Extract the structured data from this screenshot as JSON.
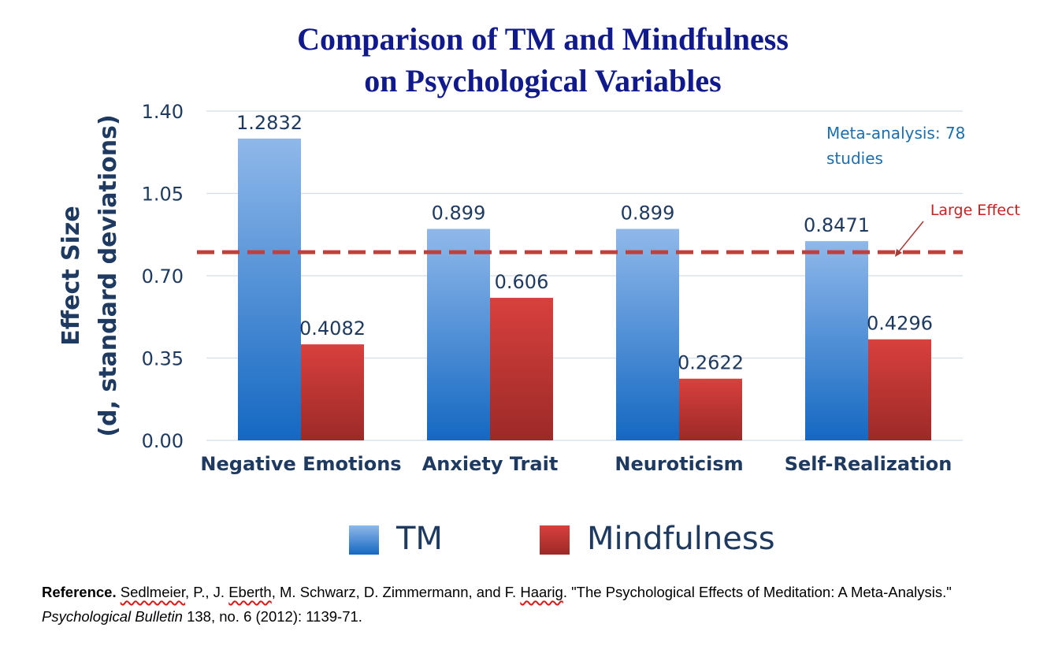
{
  "chart_data": {
    "type": "bar",
    "title_lines": [
      "Comparison of TM and Mindfulness",
      "on Psychological Variables"
    ],
    "categories": [
      "Negative Emotions",
      "Anxiety Trait",
      "Neuroticism",
      "Self-Realization"
    ],
    "series": [
      {
        "name": "TM",
        "values": [
          1.2832,
          0.899,
          0.899,
          0.8471
        ],
        "labels": [
          "1.2832",
          "0.899",
          "0.899",
          "0.8471"
        ],
        "color": "#3a84d0"
      },
      {
        "name": "Mindfulness",
        "values": [
          0.4082,
          0.606,
          0.2622,
          0.4296
        ],
        "labels": [
          "0.4082",
          "0.606",
          "0.2622",
          "0.4296"
        ],
        "color": "#c93a36"
      }
    ],
    "ylabel_lines": [
      "Effect Size",
      "(d, standard deviations)"
    ],
    "ylim": [
      0,
      1.4
    ],
    "yticks": [
      "0.00",
      "0.35",
      "0.70",
      "1.05",
      "1.40"
    ],
    "grid": true,
    "reference_line": {
      "value": 0.8,
      "label": "Large Effect",
      "color": "#c0403c"
    },
    "note_lines": [
      "Meta-analysis: 78",
      "studies"
    ],
    "legend_position": "bottom"
  },
  "reference": {
    "label": "Reference.",
    "author1": "Sedlmeier",
    "part1": ", P., J. ",
    "author2": "Eberth",
    "part2": ", M. Schwarz, D. Zimmermann, and F. ",
    "author3": "Haarig",
    "part3": ". \"The Psychological Effects of Meditation: A Meta-Analysis.\" ",
    "journal": "Psychological Bulletin",
    "part4": " 138, no. 6 (2012): 1139-71."
  }
}
